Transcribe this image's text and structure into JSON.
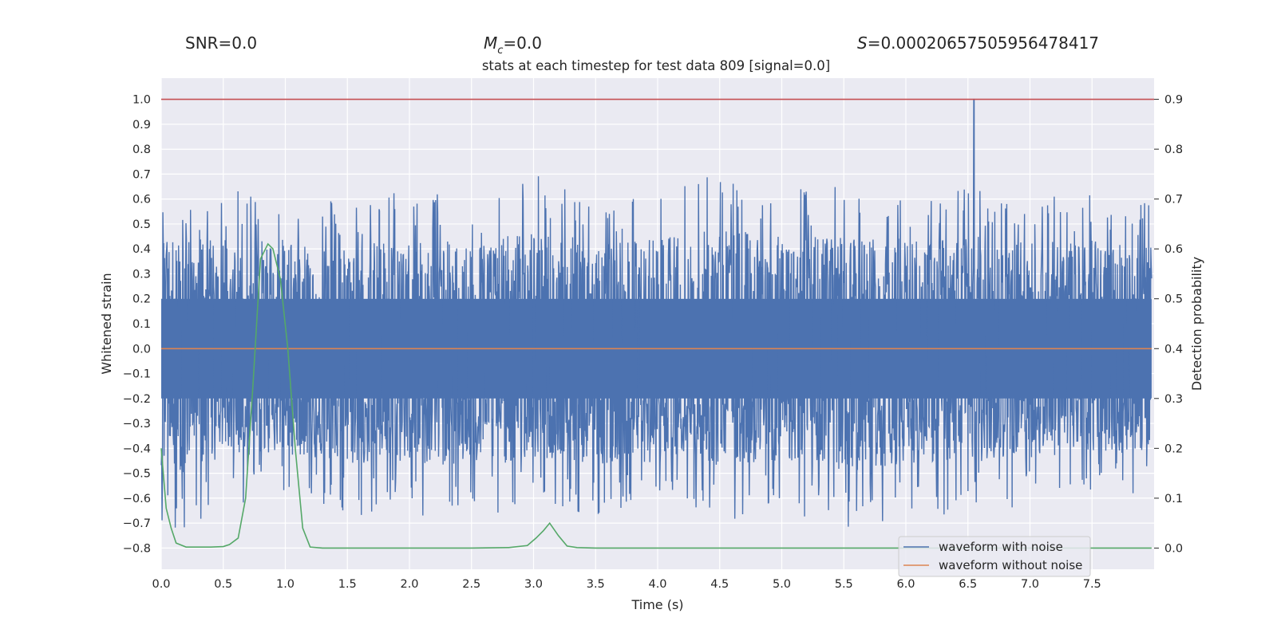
{
  "chart_data": {
    "type": "line",
    "stats": {
      "snr": "SNR=0.0",
      "mc_symbol": "M",
      "mc_sub": "c",
      "mc_value": "=0.0",
      "s_symbol": "S",
      "s_value": "=0.00020657505956478417"
    },
    "title": "stats at each timestep for test data 809 [signal=0.0]",
    "xlabel": "Time (s)",
    "ylabel": "Whitened strain",
    "ylabel_right": "Detection probability",
    "xlim": [
      0.0,
      8.0
    ],
    "ylim": [
      -0.885,
      1.085
    ],
    "ylim_right": [
      -0.0425,
      0.9425
    ],
    "xticks": [
      "0.0",
      "0.5",
      "1.0",
      "1.5",
      "2.0",
      "2.5",
      "3.0",
      "3.5",
      "4.0",
      "4.5",
      "5.0",
      "5.5",
      "6.0",
      "6.5",
      "7.0",
      "7.5"
    ],
    "yticks": [
      "1.0",
      "0.9",
      "0.8",
      "0.7",
      "0.6",
      "0.5",
      "0.4",
      "0.3",
      "0.2",
      "0.1",
      "0.0",
      "−0.1",
      "−0.2",
      "−0.3",
      "−0.4",
      "−0.5",
      "−0.6",
      "−0.7",
      "−0.8"
    ],
    "yticks_right": [
      "0.9",
      "0.8",
      "0.7",
      "0.6",
      "0.5",
      "0.4",
      "0.3",
      "0.2",
      "0.1",
      "0.0"
    ],
    "grid": true,
    "legend_position": "lower-right",
    "background_color": "#eaeaf2",
    "threshold_color": "#c44e52",
    "series": [
      {
        "name": "waveform with noise",
        "color": "#4c72b0",
        "axis": "left",
        "description_envelope": {
          "x": [
            0.0,
            0.5,
            1.0,
            1.5,
            2.0,
            2.5,
            3.0,
            3.5,
            4.0,
            4.5,
            5.0,
            5.5,
            6.0,
            6.5,
            7.0,
            7.5,
            7.98
          ],
          "upper": [
            0.64,
            0.63,
            0.64,
            0.59,
            0.65,
            0.6,
            0.7,
            0.62,
            0.64,
            0.72,
            0.65,
            0.66,
            0.64,
            0.66,
            0.62,
            0.63,
            0.6
          ],
          "lower": [
            -0.8,
            -0.63,
            -0.6,
            -0.69,
            -0.68,
            -0.7,
            -0.65,
            -0.69,
            -0.58,
            -0.71,
            -0.65,
            -0.74,
            -0.67,
            -0.67,
            -0.63,
            -0.6,
            -0.6
          ]
        },
        "spike": {
          "x": 6.55,
          "y": 1.0
        }
      },
      {
        "name": "waveform without noise",
        "color": "#dd8452",
        "axis": "left",
        "x": [
          0.0,
          7.98
        ],
        "values": [
          0.0,
          0.0
        ]
      },
      {
        "name": "",
        "color": "#55a868",
        "axis": "right",
        "x": [
          0.0,
          0.04,
          0.08,
          0.12,
          0.2,
          0.3,
          0.4,
          0.5,
          0.55,
          0.62,
          0.68,
          0.74,
          0.8,
          0.86,
          0.9,
          0.96,
          1.02,
          1.08,
          1.14,
          1.2,
          1.3,
          1.5,
          2.0,
          2.5,
          2.8,
          2.95,
          3.02,
          3.08,
          3.13,
          3.2,
          3.27,
          3.35,
          3.5,
          4.0,
          5.0,
          6.0,
          7.0,
          7.98
        ],
        "values": [
          0.2,
          0.08,
          0.04,
          0.01,
          0.002,
          0.002,
          0.002,
          0.003,
          0.007,
          0.02,
          0.1,
          0.33,
          0.58,
          0.61,
          0.6,
          0.54,
          0.4,
          0.2,
          0.04,
          0.002,
          0.0,
          0.0,
          0.0,
          0.0,
          0.001,
          0.005,
          0.02,
          0.035,
          0.05,
          0.025,
          0.004,
          0.001,
          0.0,
          0.0,
          0.0,
          0.0,
          0.0,
          0.0
        ]
      },
      {
        "name": "",
        "color": "#c44e52",
        "axis": "left",
        "x": [
          0.0,
          8.0
        ],
        "values": [
          1.0,
          1.0
        ]
      }
    ]
  }
}
